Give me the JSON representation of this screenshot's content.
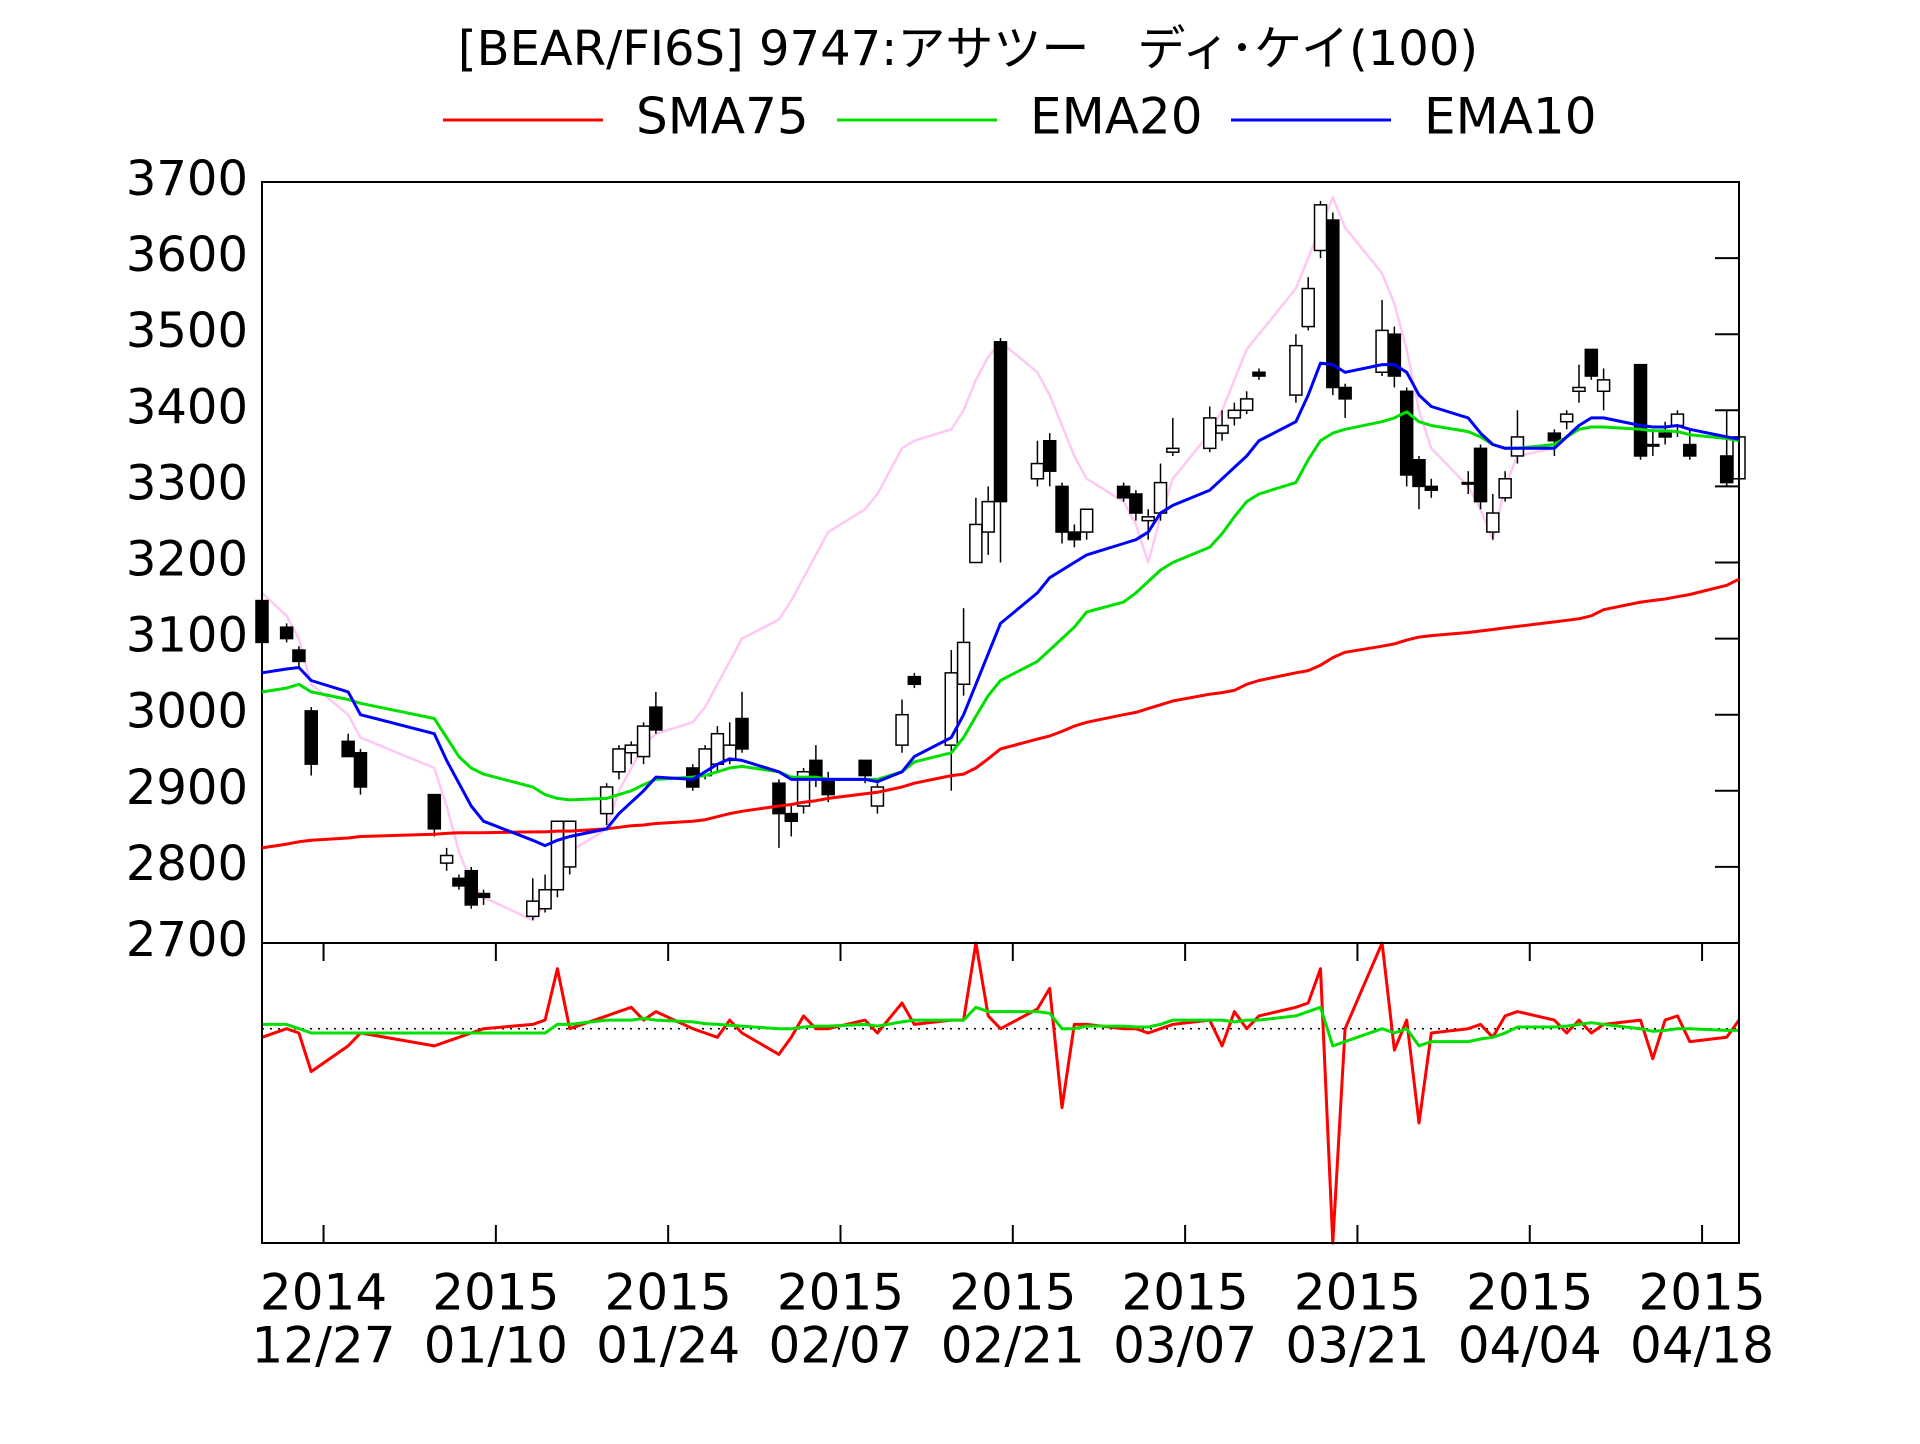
{
  "chart_data": {
    "type": "candlestick",
    "title": "[BEAR/FI6S] 9747:アサツー　ディ･ケイ(100)",
    "x": [
      "2014-12-22",
      "2014-12-24",
      "2014-12-25",
      "2014-12-26",
      "2014-12-29",
      "2014-12-30",
      "2015-01-05",
      "2015-01-06",
      "2015-01-07",
      "2015-01-08",
      "2015-01-09",
      "2015-01-13",
      "2015-01-14",
      "2015-01-15",
      "2015-01-16",
      "2015-01-19",
      "2015-01-20",
      "2015-01-21",
      "2015-01-22",
      "2015-01-23",
      "2015-01-26",
      "2015-01-27",
      "2015-01-28",
      "2015-01-29",
      "2015-01-30",
      "2015-02-02",
      "2015-02-03",
      "2015-02-04",
      "2015-02-05",
      "2015-02-06",
      "2015-02-09",
      "2015-02-10",
      "2015-02-12",
      "2015-02-13",
      "2015-02-16",
      "2015-02-17",
      "2015-02-18",
      "2015-02-19",
      "2015-02-20",
      "2015-02-23",
      "2015-02-24",
      "2015-02-25",
      "2015-02-26",
      "2015-02-27",
      "2015-03-02",
      "2015-03-03",
      "2015-03-04",
      "2015-03-05",
      "2015-03-06",
      "2015-03-09",
      "2015-03-10",
      "2015-03-11",
      "2015-03-12",
      "2015-03-13",
      "2015-03-16",
      "2015-03-17",
      "2015-03-18",
      "2015-03-19",
      "2015-03-20",
      "2015-03-23",
      "2015-03-24",
      "2015-03-25",
      "2015-03-26",
      "2015-03-27",
      "2015-03-30",
      "2015-03-31",
      "2015-04-01",
      "2015-04-02",
      "2015-04-03",
      "2015-04-06",
      "2015-04-07",
      "2015-04-08",
      "2015-04-09",
      "2015-04-10",
      "2015-04-13",
      "2015-04-14",
      "2015-04-15",
      "2015-04-16",
      "2015-04-17",
      "2015-04-20",
      "2015-04-21"
    ],
    "open": [
      3150,
      3115,
      3085,
      3005,
      2965,
      2950,
      2895,
      2805,
      2785,
      2795,
      2765,
      2735,
      2745,
      2770,
      2800,
      2870,
      2925,
      2950,
      2945,
      3010,
      2930,
      2920,
      2935,
      2940,
      2995,
      2910,
      2870,
      2880,
      2940,
      2915,
      2940,
      2880,
      2960,
      3050,
      2960,
      3040,
      3200,
      3240,
      3490,
      3310,
      3360,
      3300,
      3240,
      3240,
      3300,
      3290,
      3255,
      3265,
      3345,
      3350,
      3370,
      3390,
      3400,
      3450,
      3420,
      3510,
      3610,
      3650,
      3430,
      3450,
      3500,
      3425,
      3335,
      3300,
      3305,
      3350,
      3240,
      3285,
      3340,
      3370,
      3385,
      3425,
      3480,
      3425,
      3460,
      3355,
      3370,
      3380,
      3355,
      3340,
      3310
    ],
    "high": [
      3155,
      3120,
      3090,
      3010,
      2975,
      2955,
      2895,
      2825,
      2790,
      2800,
      2770,
      2785,
      2790,
      2860,
      2860,
      2910,
      2960,
      2965,
      2990,
      3030,
      2935,
      2960,
      2985,
      2990,
      3030,
      2915,
      2880,
      2930,
      2960,
      2925,
      2940,
      2910,
      3020,
      3055,
      3085,
      3140,
      3285,
      3300,
      3495,
      3360,
      3370,
      3305,
      3250,
      3270,
      3305,
      3295,
      3270,
      3330,
      3390,
      3405,
      3400,
      3410,
      3425,
      3455,
      3500,
      3575,
      3675,
      3660,
      3435,
      3545,
      3510,
      3430,
      3340,
      3310,
      3320,
      3355,
      3290,
      3320,
      3400,
      3375,
      3400,
      3460,
      3480,
      3455,
      3460,
      3375,
      3385,
      3400,
      3375,
      3400,
      3365
    ],
    "low": [
      3090,
      3095,
      3060,
      2920,
      2945,
      2895,
      2840,
      2795,
      2770,
      2745,
      2750,
      2730,
      2740,
      2760,
      2790,
      2855,
      2915,
      2935,
      2935,
      2975,
      2900,
      2915,
      2925,
      2935,
      2950,
      2825,
      2840,
      2870,
      2905,
      2885,
      2910,
      2870,
      2950,
      3035,
      2900,
      3025,
      3200,
      3210,
      3200,
      3300,
      3300,
      3225,
      3220,
      3230,
      3280,
      3255,
      3230,
      3255,
      3340,
      3345,
      3360,
      3380,
      3395,
      3440,
      3410,
      3505,
      3600,
      3420,
      3390,
      3445,
      3430,
      3300,
      3270,
      3285,
      3290,
      3270,
      3230,
      3280,
      3330,
      3340,
      3375,
      3410,
      3440,
      3400,
      3335,
      3340,
      3355,
      3365,
      3335,
      3300,
      3305
    ],
    "close": [
      3095,
      3100,
      3070,
      2935,
      2945,
      2905,
      2850,
      2815,
      2775,
      2750,
      2760,
      2755,
      2770,
      2860,
      2860,
      2905,
      2955,
      2960,
      2985,
      2980,
      2905,
      2955,
      2975,
      2960,
      2955,
      2870,
      2860,
      2925,
      2915,
      2895,
      2920,
      2905,
      3000,
      3040,
      3055,
      3095,
      3250,
      3280,
      3280,
      3330,
      3320,
      3240,
      3230,
      3270,
      3285,
      3265,
      3260,
      3305,
      3350,
      3390,
      3380,
      3400,
      3415,
      3445,
      3485,
      3560,
      3670,
      3430,
      3415,
      3505,
      3445,
      3315,
      3300,
      3295,
      3305,
      3280,
      3265,
      3310,
      3365,
      3360,
      3395,
      3430,
      3445,
      3440,
      3340,
      3355,
      3365,
      3395,
      3340,
      3305,
      3365
    ],
    "series": [
      {
        "name": "SMA75",
        "color": "#ff0000",
        "values": [
          2825,
          2830,
          2833,
          2835,
          2838,
          2840,
          2843,
          2844,
          2845,
          2845,
          2845,
          2846,
          2846,
          2847,
          2847,
          2850,
          2852,
          2854,
          2855,
          2857,
          2860,
          2862,
          2866,
          2870,
          2873,
          2880,
          2882,
          2885,
          2887,
          2890,
          2896,
          2898,
          2905,
          2910,
          2920,
          2922,
          2930,
          2942,
          2955,
          2968,
          2972,
          2978,
          2985,
          2990,
          3000,
          3003,
          3008,
          3013,
          3018,
          3027,
          3029,
          3032,
          3040,
          3045,
          3055,
          3058,
          3065,
          3075,
          3082,
          3090,
          3093,
          3098,
          3102,
          3104,
          3108,
          3110,
          3112,
          3114,
          3116,
          3122,
          3124,
          3126,
          3130,
          3138,
          3148,
          3150,
          3152,
          3155,
          3158,
          3170,
          3178
        ]
      },
      {
        "name": "EMA20",
        "color": "#00e000",
        "values": [
          3030,
          3035,
          3040,
          3030,
          3020,
          3015,
          2995,
          2970,
          2945,
          2930,
          2922,
          2905,
          2895,
          2890,
          2888,
          2890,
          2895,
          2900,
          2908,
          2915,
          2918,
          2920,
          2925,
          2930,
          2932,
          2925,
          2918,
          2918,
          2918,
          2915,
          2915,
          2915,
          2925,
          2938,
          2950,
          2970,
          2998,
          3025,
          3045,
          3070,
          3085,
          3100,
          3115,
          3135,
          3148,
          3160,
          3175,
          3190,
          3200,
          3220,
          3238,
          3260,
          3280,
          3290,
          3305,
          3335,
          3360,
          3370,
          3375,
          3385,
          3390,
          3398,
          3385,
          3380,
          3372,
          3365,
          3355,
          3350,
          3350,
          3355,
          3365,
          3375,
          3378,
          3378,
          3375,
          3373,
          3373,
          3372,
          3368,
          3363,
          3360
        ]
      },
      {
        "name": "EMA10",
        "color": "#0000ff",
        "values": [
          3055,
          3060,
          3062,
          3045,
          3030,
          3000,
          2975,
          2940,
          2910,
          2880,
          2860,
          2835,
          2828,
          2835,
          2840,
          2850,
          2870,
          2885,
          2900,
          2918,
          2915,
          2925,
          2935,
          2942,
          2940,
          2925,
          2915,
          2915,
          2915,
          2915,
          2915,
          2912,
          2925,
          2945,
          2970,
          3000,
          3040,
          3080,
          3120,
          3160,
          3180,
          3190,
          3200,
          3210,
          3225,
          3230,
          3240,
          3265,
          3275,
          3295,
          3310,
          3325,
          3340,
          3360,
          3385,
          3420,
          3462,
          3460,
          3450,
          3460,
          3460,
          3450,
          3420,
          3405,
          3390,
          3370,
          3355,
          3350,
          3350,
          3350,
          3365,
          3380,
          3390,
          3390,
          3380,
          3378,
          3378,
          3380,
          3375,
          3365,
          3362
        ]
      },
      {
        "color": "#ffc8f4",
        "values": [
          3160,
          3130,
          3100,
          3040,
          3000,
          2970,
          2930,
          2880,
          2820,
          2780,
          2760,
          2730,
          2750,
          2790,
          2820,
          2850,
          2900,
          2930,
          2960,
          2975,
          2990,
          3010,
          3040,
          3070,
          3100,
          3125,
          3150,
          3180,
          3210,
          3240,
          3270,
          3290,
          3350,
          3360,
          3375,
          3400,
          3440,
          3470,
          3490,
          3450,
          3420,
          3380,
          3340,
          3310,
          3280,
          3250,
          3200,
          3260,
          3310,
          3370,
          3400,
          3440,
          3480,
          3500,
          3560,
          3600,
          3640,
          3680,
          3640,
          3580,
          3540,
          3480,
          3400,
          3350,
          3300,
          3270,
          3230,
          3300,
          3340,
          3350,
          3365,
          3380,
          3390,
          3390,
          3380,
          3378,
          3378,
          3380,
          3375,
          3365,
          3362
        ]
      }
    ],
    "xlim": [
      "2014-12-22",
      "2015-04-21"
    ],
    "xticks": [
      {
        "value": "2014-12-27",
        "label": [
          "2014",
          "12/27"
        ]
      },
      {
        "value": "2015-01-10",
        "label": [
          "2015",
          "01/10"
        ]
      },
      {
        "value": "2015-01-24",
        "label": [
          "2015",
          "01/24"
        ]
      },
      {
        "value": "2015-02-07",
        "label": [
          "2015",
          "02/07"
        ]
      },
      {
        "value": "2015-02-21",
        "label": [
          "2015",
          "02/21"
        ]
      },
      {
        "value": "2015-03-07",
        "label": [
          "2015",
          "03/07"
        ]
      },
      {
        "value": "2015-03-21",
        "label": [
          "2015",
          "03/21"
        ]
      },
      {
        "value": "2015-04-04",
        "label": [
          "2015",
          "04/04"
        ]
      },
      {
        "value": "2015-04-18",
        "label": [
          "2015",
          "04/18"
        ]
      }
    ],
    "ylim": [
      2700,
      3700
    ],
    "yticks": [
      2700,
      2800,
      2900,
      3000,
      3100,
      3200,
      3300,
      3400,
      3500,
      3600,
      3700
    ],
    "lower_panel": {
      "type": "line",
      "ylim": [
        -25,
        10
      ],
      "hline": 0,
      "series": [
        {
          "color": "#ff0000",
          "values": [
            -1,
            0,
            -0.5,
            -5,
            -2,
            -0.5,
            -2,
            -1.5,
            -1,
            -0.5,
            0,
            0.5,
            1,
            7,
            0,
            1.5,
            2,
            2.5,
            1,
            2,
            0,
            -0.5,
            -1,
            1,
            -0.5,
            -3,
            -1,
            1.5,
            0,
            0,
            1,
            -0.5,
            3,
            0.5,
            1,
            1,
            10,
            1.5,
            0,
            2.3,
            4.7,
            -9.2,
            0.5,
            0.5,
            0,
            0,
            -0.5,
            0,
            0.5,
            1,
            -2,
            2,
            0,
            1.5,
            2.5,
            3,
            7,
            -25,
            0,
            10,
            -2.5,
            1,
            -11,
            -0.5,
            0,
            0.5,
            -1,
            1.5,
            2,
            1,
            -0.5,
            1,
            -0.5,
            0.5,
            1,
            -3.5,
            1,
            1.5,
            -1.5,
            -1,
            1
          ]
        },
        {
          "color": "#00e000",
          "values": [
            0.5,
            0.5,
            0,
            -0.5,
            -0.5,
            -0.5,
            -0.5,
            -0.5,
            -0.5,
            -0.5,
            -0.5,
            -0.5,
            -0.5,
            0.5,
            0.5,
            1,
            1,
            1,
            1.2,
            1,
            0.8,
            0.6,
            0.5,
            0.4,
            0.3,
            0,
            0,
            0.2,
            0.3,
            0.3,
            0.5,
            0.3,
            0.8,
            1,
            1,
            1,
            2.5,
            2,
            2,
            2,
            1.8,
            0,
            0,
            0.3,
            0.3,
            0.2,
            0.2,
            0.5,
            1,
            1,
            1,
            0.8,
            1,
            1,
            1.5,
            2,
            2.5,
            -2,
            -1.5,
            0,
            -0.5,
            0,
            -2,
            -1.5,
            -1.5,
            -1.2,
            -1,
            -0.5,
            0.2,
            0.2,
            0.3,
            0.5,
            0.7,
            0.5,
            0,
            -0.3,
            -0.2,
            0,
            0,
            -0.2,
            -0.2
          ]
        }
      ]
    }
  }
}
